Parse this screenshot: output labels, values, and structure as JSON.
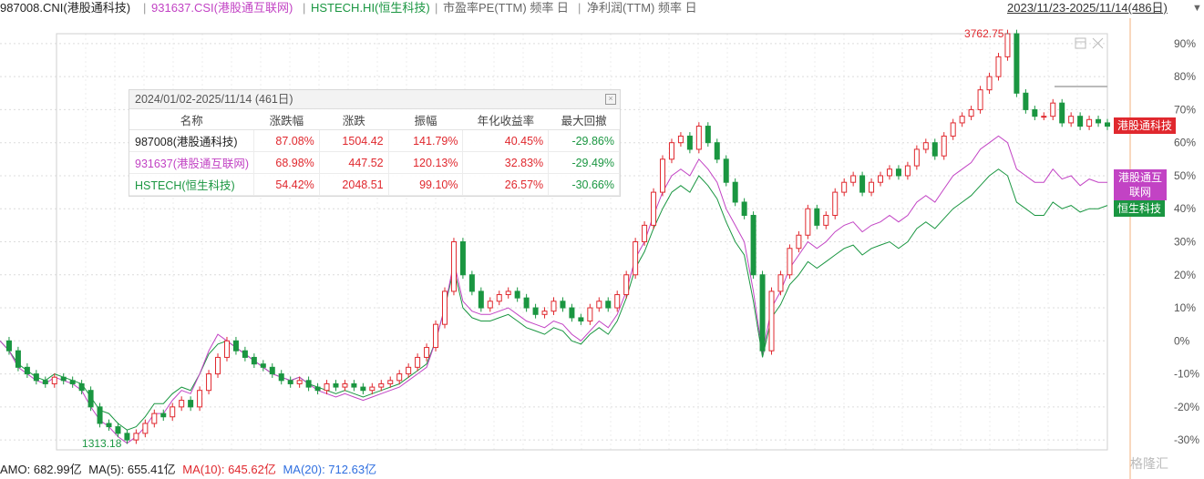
{
  "header": {
    "title1": "987008.CNI(港股通科技)",
    "sep": "|",
    "title2": "931637.CSI(港股通互联网)",
    "title3": "HSTECH.HI(恒生科技)",
    "title4": "市盈率PE(TTM) 频率 日",
    "title5": "净利润(TTM) 频率 日",
    "date_range": "2023/11/23-2025/11/14(486日)"
  },
  "colors": {
    "cni": "#e0282e",
    "csi": "#c243c4",
    "hstech": "#1a9641",
    "up_candle": "#e0282e",
    "down_candle": "#1a9641",
    "grid": "#d6d6d6",
    "ma_blue": "#2f6fe0"
  },
  "chart_data": {
    "type": "line",
    "y_axis_ticks": [
      "90%",
      "80%",
      "70%",
      "60%",
      "50%",
      "40%",
      "30%",
      "20%",
      "10%",
      "0%",
      "-10%",
      "-20%",
      "-30%"
    ],
    "ylim": [
      -33,
      93
    ],
    "annotations": {
      "high": "3762.75",
      "low": "1313.18"
    },
    "legend_tags": [
      "港股通科技",
      "港股通互联网",
      "恒生科技"
    ],
    "series": [
      {
        "name": "987008.CNI(港股通科技)",
        "color": "#e0282e",
        "style": "candlestick",
        "values": [
          0,
          -3,
          -8,
          -10,
          -12,
          -13,
          -11,
          -12,
          -13,
          -15,
          -20,
          -25,
          -26,
          -28,
          -30,
          -28,
          -25,
          -22,
          -23,
          -20,
          -18,
          -20,
          -15,
          -10,
          -5,
          0,
          -3,
          -5,
          -7,
          -8,
          -10,
          -12,
          -13,
          -12,
          -14,
          -15,
          -13,
          -14,
          -13,
          -14,
          -15,
          -14,
          -13,
          -12,
          -10,
          -8,
          -5,
          -2,
          5,
          15,
          30,
          20,
          15,
          10,
          12,
          14,
          15,
          13,
          10,
          8,
          9,
          12,
          10,
          7,
          6,
          10,
          12,
          10,
          14,
          20,
          30,
          35,
          45,
          55,
          60,
          62,
          58,
          65,
          60,
          55,
          48,
          42,
          38,
          20,
          -3,
          15,
          20,
          28,
          32,
          40,
          35,
          38,
          45,
          48,
          50,
          45,
          48,
          50,
          52,
          50,
          53,
          58,
          60,
          56,
          62,
          66,
          68,
          70,
          76,
          80,
          86,
          93,
          75,
          70,
          68,
          68,
          72,
          66,
          68,
          65,
          67,
          66,
          65
        ]
      },
      {
        "name": "931637.CSI(港股通互联网)",
        "color": "#c243c4",
        "style": "line",
        "values": [
          0,
          -3,
          -8,
          -10,
          -12,
          -13,
          -11,
          -12,
          -13,
          -15,
          -20,
          -24,
          -26,
          -29,
          -31,
          -29,
          -26,
          -22,
          -22,
          -18,
          -15,
          -16,
          -10,
          -3,
          2,
          0,
          -2,
          -4,
          -6,
          -8,
          -10,
          -11,
          -12,
          -11,
          -13,
          -15,
          -16,
          -17,
          -16,
          -17,
          -18,
          -17,
          -16,
          -15,
          -14,
          -12,
          -10,
          -8,
          0,
          10,
          24,
          12,
          9,
          8,
          8,
          9,
          10,
          8,
          6,
          5,
          4,
          6,
          5,
          2,
          0,
          3,
          6,
          4,
          8,
          15,
          25,
          30,
          38,
          45,
          50,
          52,
          50,
          55,
          52,
          48,
          40,
          35,
          30,
          15,
          -4,
          10,
          15,
          22,
          26,
          30,
          28,
          30,
          33,
          35,
          36,
          33,
          35,
          36,
          38,
          36,
          38,
          42,
          44,
          42,
          46,
          50,
          52,
          54,
          58,
          60,
          62,
          60,
          52,
          50,
          48,
          48,
          52,
          49,
          50,
          47,
          49,
          48,
          48
        ]
      },
      {
        "name": "HSTECH.HI(恒生科技)",
        "color": "#1a9641",
        "style": "line",
        "values": [
          0,
          -3,
          -7,
          -9,
          -11,
          -12,
          -10,
          -11,
          -12,
          -13,
          -17,
          -21,
          -22,
          -25,
          -27,
          -26,
          -23,
          -19,
          -19,
          -16,
          -14,
          -15,
          -10,
          -4,
          -1,
          0,
          -2,
          -4,
          -6,
          -8,
          -10,
          -11,
          -12,
          -11,
          -13,
          -14,
          -15,
          -16,
          -15,
          -16,
          -17,
          -16,
          -15,
          -14,
          -13,
          -11,
          -9,
          -7,
          0,
          10,
          22,
          10,
          7,
          6,
          6,
          7,
          8,
          6,
          4,
          3,
          2,
          4,
          3,
          0,
          -1,
          2,
          4,
          2,
          6,
          13,
          22,
          27,
          34,
          40,
          45,
          47,
          45,
          50,
          47,
          43,
          36,
          30,
          26,
          12,
          -5,
          7,
          11,
          17,
          20,
          24,
          22,
          24,
          26,
          28,
          29,
          26,
          28,
          29,
          30,
          28,
          30,
          34,
          36,
          34,
          37,
          40,
          42,
          44,
          47,
          50,
          52,
          50,
          42,
          40,
          38,
          38,
          42,
          40,
          41,
          39,
          40,
          40,
          41
        ]
      }
    ]
  },
  "stats": {
    "period": "2024/01/02-2025/11/14 (461日)",
    "columns": [
      "名称",
      "涨跌幅",
      "涨跌",
      "振幅",
      "年化收益率",
      "最大回撤"
    ],
    "rows": [
      {
        "name": "987008(港股通科技)",
        "chg_pct": "87.08%",
        "chg": "1504.42",
        "amp": "141.79%",
        "ann": "40.45%",
        "mdd": "-29.86%",
        "name_color": "#222"
      },
      {
        "name": "931637(港股通互联网)",
        "chg_pct": "68.98%",
        "chg": "447.52",
        "amp": "120.13%",
        "ann": "32.83%",
        "mdd": "-29.49%",
        "name_color": "#c243c4"
      },
      {
        "name": "HSTECH(恒生科技)",
        "chg_pct": "54.42%",
        "chg": "2048.51",
        "amp": "99.10%",
        "ann": "26.57%",
        "mdd": "-30.66%",
        "name_color": "#1a9641"
      }
    ]
  },
  "footer": {
    "amo": "AMO: 682.99亿",
    "ma5": "MA(5): 655.41亿",
    "ma10": "MA(10): 645.62亿",
    "ma20": "MA(20): 712.63亿"
  },
  "watermark": "格隆汇"
}
